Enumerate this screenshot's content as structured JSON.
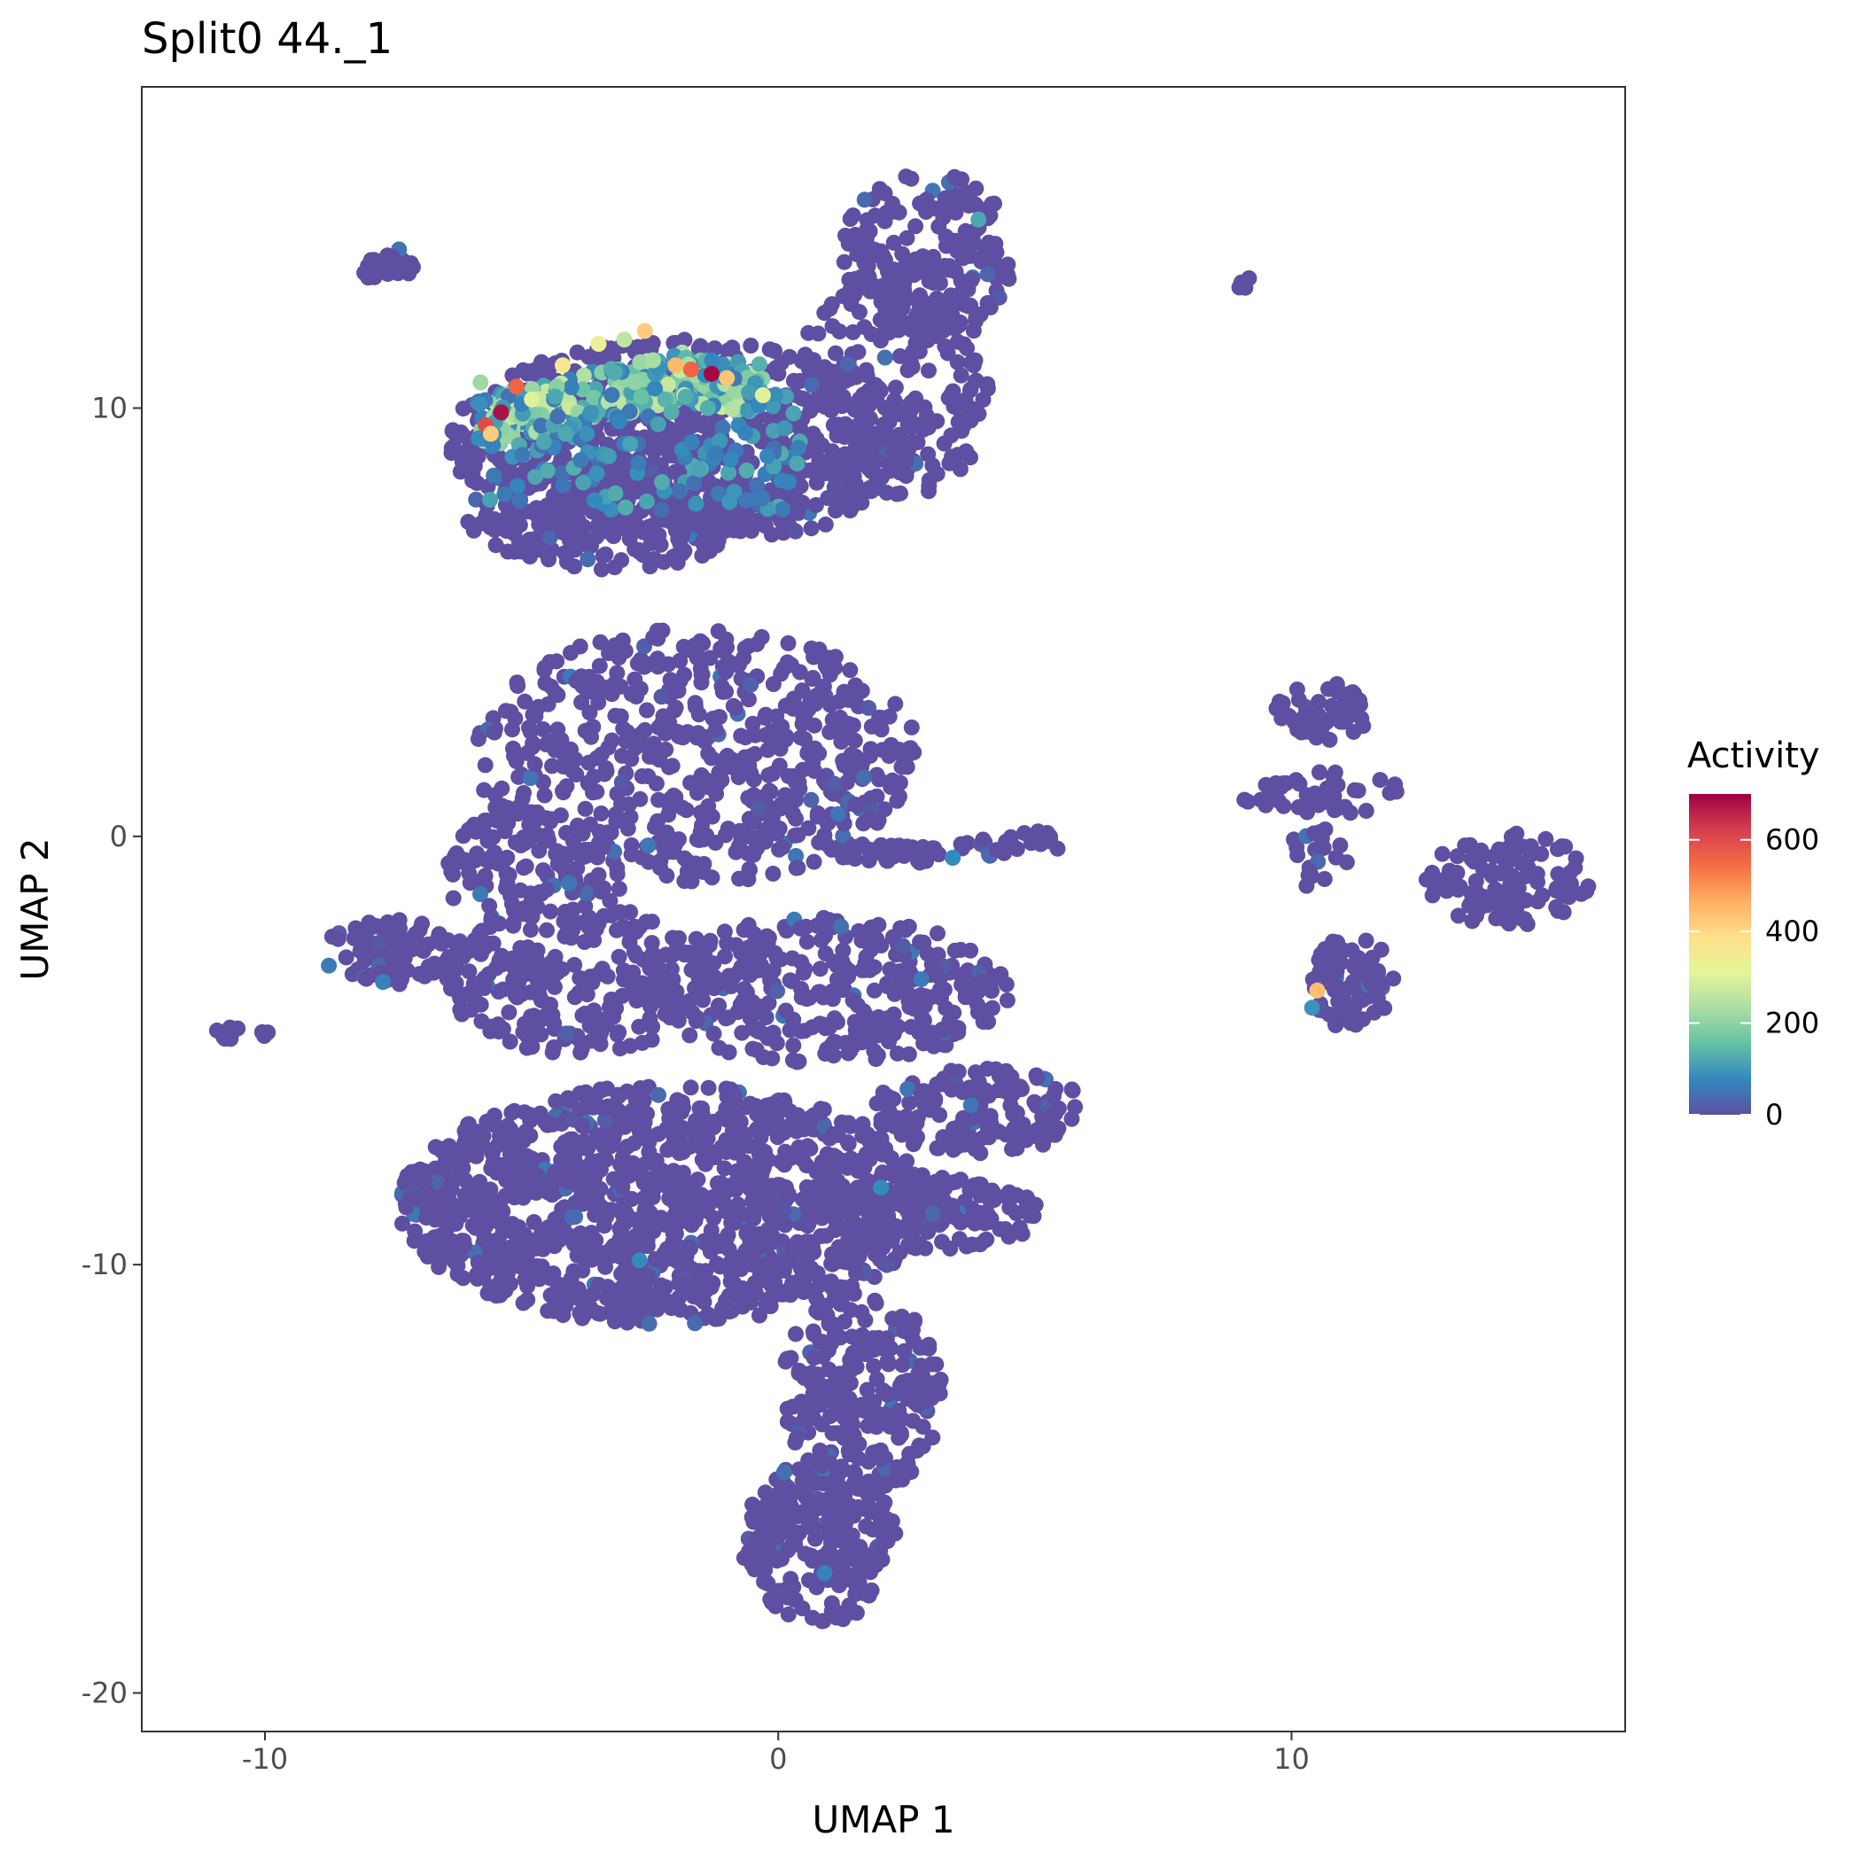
{
  "chart_data": {
    "type": "scatter",
    "title": "Split0 44._1",
    "xlabel": "UMAP 1",
    "ylabel": "UMAP 2",
    "xlim": [
      -12.4,
      16.5
    ],
    "ylim": [
      -20.9,
      17.5
    ],
    "x_ticks": [
      -10,
      0,
      10
    ],
    "x_tick_labels": [
      "-10",
      "0",
      "10"
    ],
    "y_ticks": [
      -20,
      -10,
      0,
      10
    ],
    "y_tick_labels": [
      "-20",
      "-10",
      "0",
      "10"
    ],
    "grid": false,
    "legend": {
      "title": "Activity",
      "position": "right",
      "type": "colorbar",
      "range": [
        0,
        700
      ],
      "ticks": [
        0,
        200,
        400,
        600
      ],
      "tick_labels": [
        "0",
        "200",
        "400",
        "600"
      ],
      "palette": "Spectral",
      "colors": [
        "#5E4FA2",
        "#3288BD",
        "#66C2A5",
        "#ABDDA4",
        "#E6F598",
        "#FEE08B",
        "#FDAE61",
        "#F46D43",
        "#D53E4F",
        "#9E0142"
      ]
    },
    "clusters": [
      {
        "cx": -1.8,
        "cy": 9.2,
        "rx": 4.6,
        "ry": 2.4,
        "density": 800
      },
      {
        "cx": 2.9,
        "cy": 13.6,
        "rx": 1.7,
        "ry": 1.9,
        "density": 180
      },
      {
        "cx": 2.3,
        "cy": 10.6,
        "rx": 1.9,
        "ry": 2.7,
        "density": 180
      },
      {
        "cx": -3.3,
        "cy": 7.5,
        "rx": 2.8,
        "ry": 1.3,
        "density": 220
      },
      {
        "cx": -1.6,
        "cy": 1.9,
        "rx": 4.3,
        "ry": 3.0,
        "density": 600
      },
      {
        "cx": -4.8,
        "cy": -0.8,
        "rx": 1.8,
        "ry": 1.4,
        "density": 120
      },
      {
        "cx": 2.2,
        "cy": -0.4,
        "rx": 1.1,
        "ry": 0.25,
        "density": 35
      },
      {
        "cx": 4.7,
        "cy": -0.2,
        "rx": 1.2,
        "ry": 0.35,
        "density": 30
      },
      {
        "cx": -7.6,
        "cy": -2.7,
        "rx": 1.3,
        "ry": 0.8,
        "density": 80
      },
      {
        "cx": -4.0,
        "cy": -3.3,
        "rx": 2.6,
        "ry": 1.8,
        "density": 250
      },
      {
        "cx": 0.9,
        "cy": -3.6,
        "rx": 3.6,
        "ry": 1.7,
        "density": 350
      },
      {
        "cx": -2.2,
        "cy": -8.6,
        "rx": 5.2,
        "ry": 2.8,
        "density": 1200
      },
      {
        "cx": 3.9,
        "cy": -6.4,
        "rx": 2.1,
        "ry": 1.0,
        "density": 150
      },
      {
        "cx": 3.0,
        "cy": -8.8,
        "rx": 2.1,
        "ry": 0.9,
        "density": 140
      },
      {
        "cx": 1.6,
        "cy": -13.0,
        "rx": 1.6,
        "ry": 2.4,
        "density": 250
      },
      {
        "cx": 0.8,
        "cy": -16.5,
        "rx": 1.5,
        "ry": 1.9,
        "density": 240
      },
      {
        "cx": -7.6,
        "cy": 13.3,
        "rx": 0.5,
        "ry": 0.5,
        "density": 25
      },
      {
        "cx": -10.5,
        "cy": -4.6,
        "rx": 0.6,
        "ry": 0.15,
        "density": 10
      },
      {
        "cx": 9.1,
        "cy": 12.9,
        "rx": 0.2,
        "ry": 0.15,
        "density": 6
      },
      {
        "cx": 10.6,
        "cy": 2.9,
        "rx": 0.9,
        "ry": 0.7,
        "density": 50
      },
      {
        "cx": 10.6,
        "cy": 1.0,
        "rx": 1.6,
        "ry": 0.5,
        "density": 45
      },
      {
        "cx": 10.5,
        "cy": -0.5,
        "rx": 0.6,
        "ry": 0.8,
        "density": 20
      },
      {
        "cx": 14.2,
        "cy": -1.0,
        "rx": 1.6,
        "ry": 1.1,
        "density": 110
      },
      {
        "cx": 11.2,
        "cy": -3.4,
        "rx": 0.9,
        "ry": 1.1,
        "density": 70
      }
    ],
    "high_activity_points": [
      {
        "x": -5.4,
        "y": 9.9,
        "v": 680
      },
      {
        "x": -5.7,
        "y": 9.6,
        "v": 600
      },
      {
        "x": -5.1,
        "y": 10.5,
        "v": 560
      },
      {
        "x": -5.6,
        "y": 9.4,
        "v": 420
      },
      {
        "x": -4.8,
        "y": 10.2,
        "v": 300
      },
      {
        "x": -4.2,
        "y": 11.0,
        "v": 360
      },
      {
        "x": -3.5,
        "y": 11.5,
        "v": 330
      },
      {
        "x": -2.6,
        "y": 11.8,
        "v": 420
      },
      {
        "x": -2.0,
        "y": 11.0,
        "v": 450
      },
      {
        "x": -1.7,
        "y": 10.9,
        "v": 560
      },
      {
        "x": -1.3,
        "y": 10.8,
        "v": 690
      },
      {
        "x": -1.0,
        "y": 10.7,
        "v": 430
      },
      {
        "x": -0.3,
        "y": 10.3,
        "v": 300
      },
      {
        "x": -5.8,
        "y": 10.6,
        "v": 220
      },
      {
        "x": -3.0,
        "y": 11.6,
        "v": 260
      },
      {
        "x": 10.5,
        "y": -3.6,
        "v": 440
      },
      {
        "x": 10.4,
        "y": -4.0,
        "v": 90
      },
      {
        "x": 3.9,
        "y": 14.4,
        "v": 120
      },
      {
        "x": 2.0,
        "y": -8.2,
        "v": 80
      },
      {
        "x": -2.7,
        "y": -9.9,
        "v": 80
      },
      {
        "x": 0.9,
        "y": -17.2,
        "v": 70
      },
      {
        "x": -7.7,
        "y": -3.4,
        "v": 70
      },
      {
        "x": 3.4,
        "y": -0.5,
        "v": 80
      }
    ]
  }
}
